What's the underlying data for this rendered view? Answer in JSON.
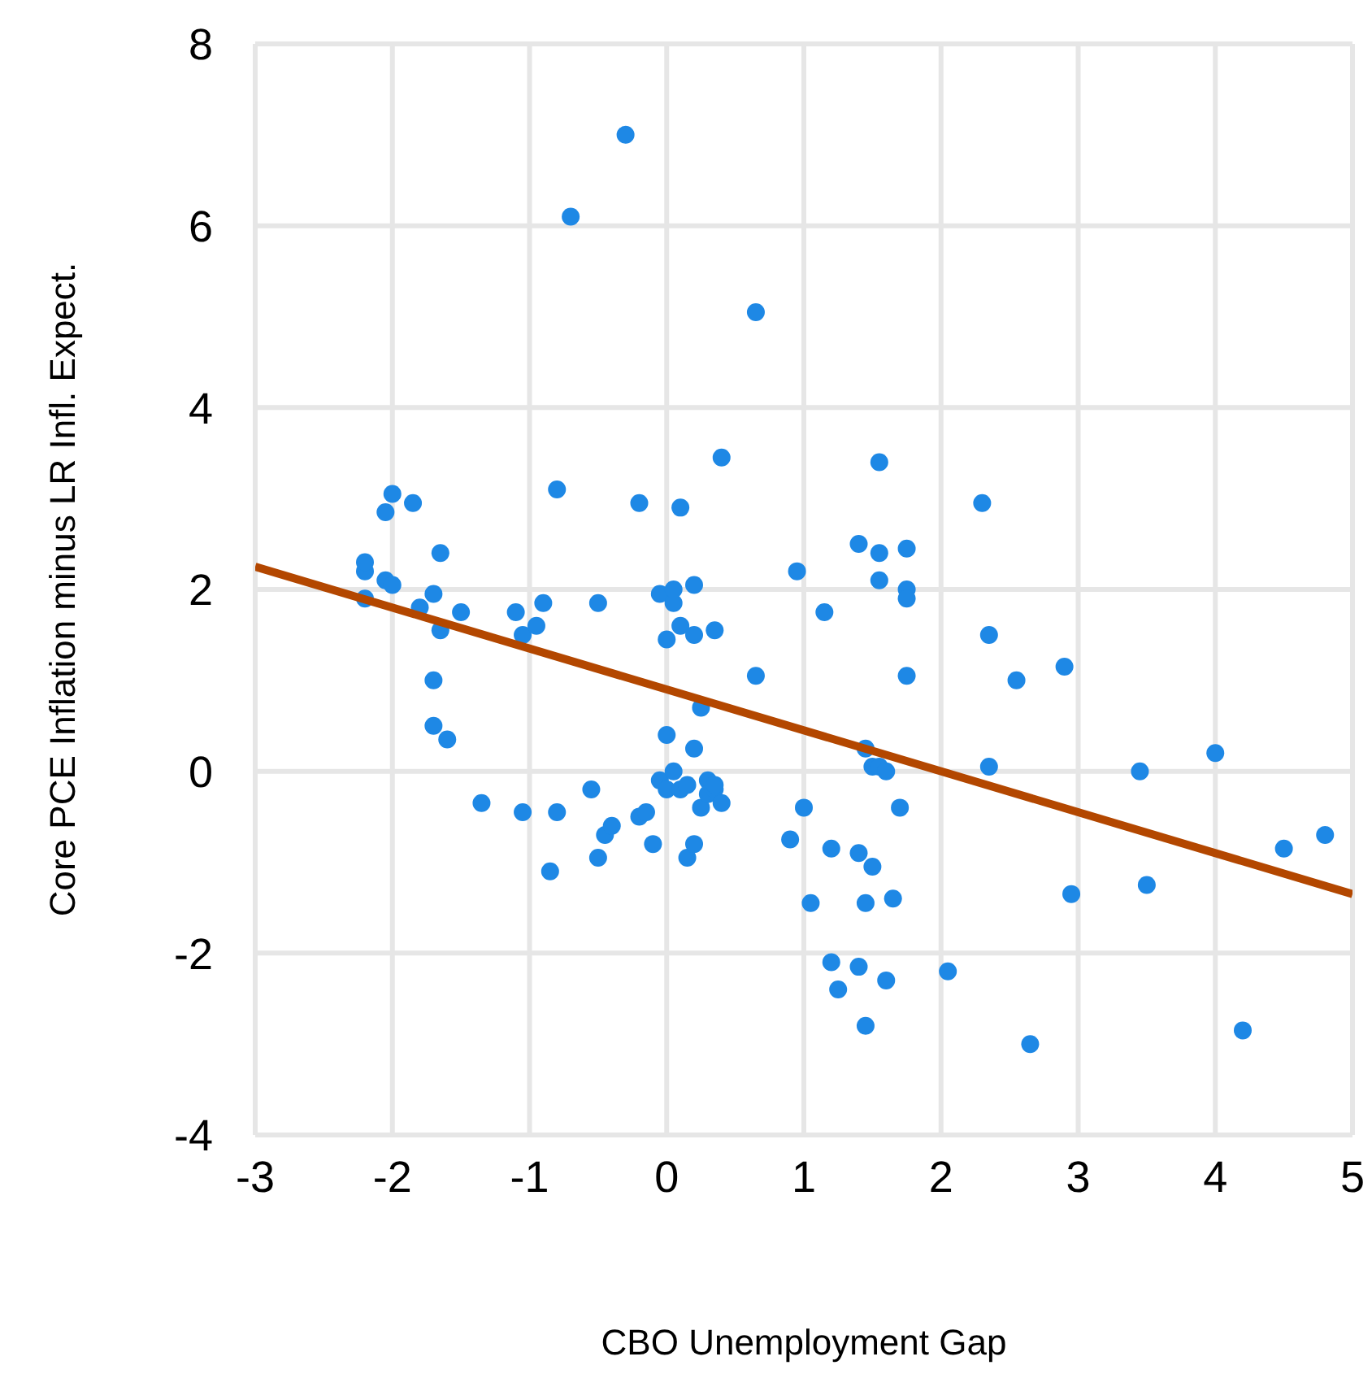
{
  "chart_data": {
    "type": "scatter",
    "xlabel": "CBO Unemployment Gap",
    "ylabel": "Core PCE Inflation minus LR Infl. Expect.",
    "xlim": [
      -3,
      5
    ],
    "ylim": [
      -4,
      8
    ],
    "xticks": [
      -3,
      -2,
      -1,
      0,
      1,
      2,
      3,
      4,
      5
    ],
    "yticks": [
      -4,
      -2,
      0,
      2,
      4,
      6,
      8
    ],
    "grid": true,
    "marker": "circle",
    "legend": false,
    "series": [
      {
        "color": "#1e88e5",
        "x": [
          -2.2,
          -2.2,
          -2.2,
          -2.05,
          -2.05,
          -2.0,
          -2.0,
          -1.85,
          -1.8,
          -1.7,
          -1.7,
          -1.7,
          -1.65,
          -1.65,
          -1.6,
          -1.5,
          -1.35,
          -1.1,
          -1.05,
          -1.05,
          -0.95,
          -0.9,
          -0.85,
          -0.8,
          -0.8,
          -0.7,
          -0.55,
          -0.5,
          -0.5,
          -0.45,
          -0.4,
          -0.3,
          -0.2,
          -0.2,
          -0.15,
          -0.1,
          -0.05,
          -0.05,
          0,
          0,
          0,
          0.05,
          0.05,
          0.05,
          0.1,
          0.1,
          0.1,
          0.15,
          0.15,
          0.2,
          0.2,
          0.2,
          0.2,
          0.25,
          0.25,
          0.3,
          0.3,
          0.35,
          0.35,
          0.35,
          0.4,
          0.4,
          0.65,
          0.65,
          0.9,
          0.95,
          1.0,
          1.05,
          1.15,
          1.2,
          1.2,
          1.25,
          1.4,
          1.4,
          1.4,
          1.45,
          1.45,
          1.45,
          1.5,
          1.5,
          1.55,
          1.55,
          1.55,
          1.55,
          1.6,
          1.6,
          1.65,
          1.7,
          1.75,
          1.75,
          1.75,
          1.75,
          2.05,
          2.3,
          2.35,
          2.35,
          2.55,
          2.65,
          2.9,
          2.95,
          3.45,
          3.5,
          4.0,
          4.2,
          4.5,
          4.8
        ],
        "values": [
          1.9,
          2.2,
          2.3,
          2.1,
          2.85,
          3.05,
          2.05,
          2.95,
          1.8,
          1.95,
          1.0,
          0.5,
          1.55,
          2.4,
          0.35,
          1.75,
          -0.35,
          1.75,
          -0.45,
          1.5,
          1.6,
          1.85,
          -1.1,
          3.1,
          -0.45,
          6.1,
          -0.2,
          1.85,
          -0.95,
          -0.7,
          -0.6,
          7.0,
          2.95,
          -0.5,
          -0.45,
          -0.8,
          1.95,
          -0.1,
          1.45,
          0.4,
          -0.2,
          1.85,
          2.0,
          0.0,
          2.9,
          1.6,
          -0.2,
          -0.15,
          -0.95,
          2.05,
          1.5,
          0.25,
          -0.8,
          0.7,
          -0.4,
          -0.1,
          -0.25,
          -0.2,
          -0.15,
          1.55,
          3.45,
          -0.35,
          5.05,
          1.05,
          -0.75,
          2.2,
          -0.4,
          -1.45,
          1.75,
          -0.85,
          -2.1,
          -2.4,
          2.5,
          -0.9,
          -2.15,
          0.25,
          -1.45,
          -2.8,
          0.05,
          -1.05,
          3.4,
          2.4,
          2.1,
          0.05,
          0.0,
          -2.3,
          -1.4,
          -0.4,
          2.45,
          2.0,
          1.9,
          1.05,
          -2.2,
          2.95,
          1.5,
          0.05,
          1.0,
          -3.0,
          1.15,
          -1.35,
          0.0,
          -1.25,
          0.2,
          -2.85,
          -0.85,
          -0.7
        ]
      },
      {
        "type": "line",
        "marker": "none",
        "color": "#b34700",
        "x": [
          -3,
          5
        ],
        "values": [
          2.25,
          -1.35
        ]
      }
    ]
  }
}
